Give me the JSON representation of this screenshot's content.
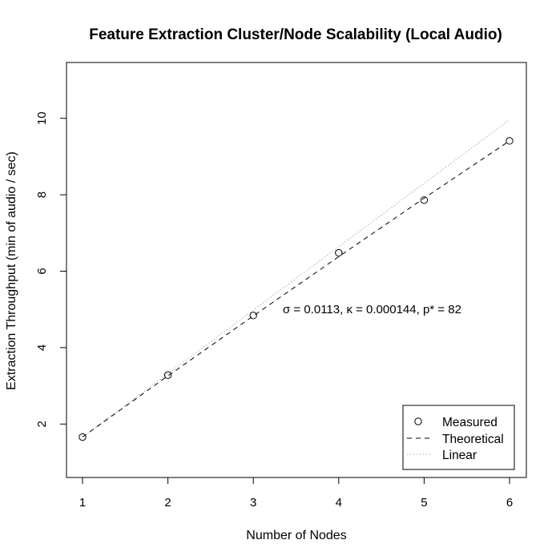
{
  "chart_data": {
    "type": "scatter",
    "title": "Feature Extraction Cluster/Node Scalability (Local Audio)",
    "xlabel": "Number of Nodes",
    "ylabel": "Extraction Throughput (min of audio / sec)",
    "xlim": [
      1,
      6
    ],
    "ylim": [
      1,
      11
    ],
    "x_ticks": [
      1,
      2,
      3,
      4,
      5,
      6
    ],
    "y_ticks": [
      2,
      4,
      6,
      8,
      10
    ],
    "grid": false,
    "legend_position": "bottom-right",
    "annotation": "σ = 0.0113, κ = 0.000144, p* = 82",
    "series": [
      {
        "name": "Measured",
        "style": "open-circle",
        "x": [
          1,
          2,
          3,
          4,
          5,
          6
        ],
        "y": [
          1.66,
          3.28,
          4.84,
          6.48,
          7.86,
          9.41
        ]
      },
      {
        "name": "Theoretical",
        "style": "dashed",
        "x": [
          1,
          2,
          3,
          4,
          5,
          6
        ],
        "y": [
          1.66,
          3.26,
          4.83,
          6.38,
          7.91,
          9.41
        ]
      },
      {
        "name": "Linear",
        "style": "dotted",
        "x": [
          1,
          6
        ],
        "y": [
          1.66,
          9.96
        ]
      }
    ],
    "colors": {
      "measured": "#000000",
      "theoretical": "#000000",
      "linear": "#aaaaaa"
    }
  }
}
